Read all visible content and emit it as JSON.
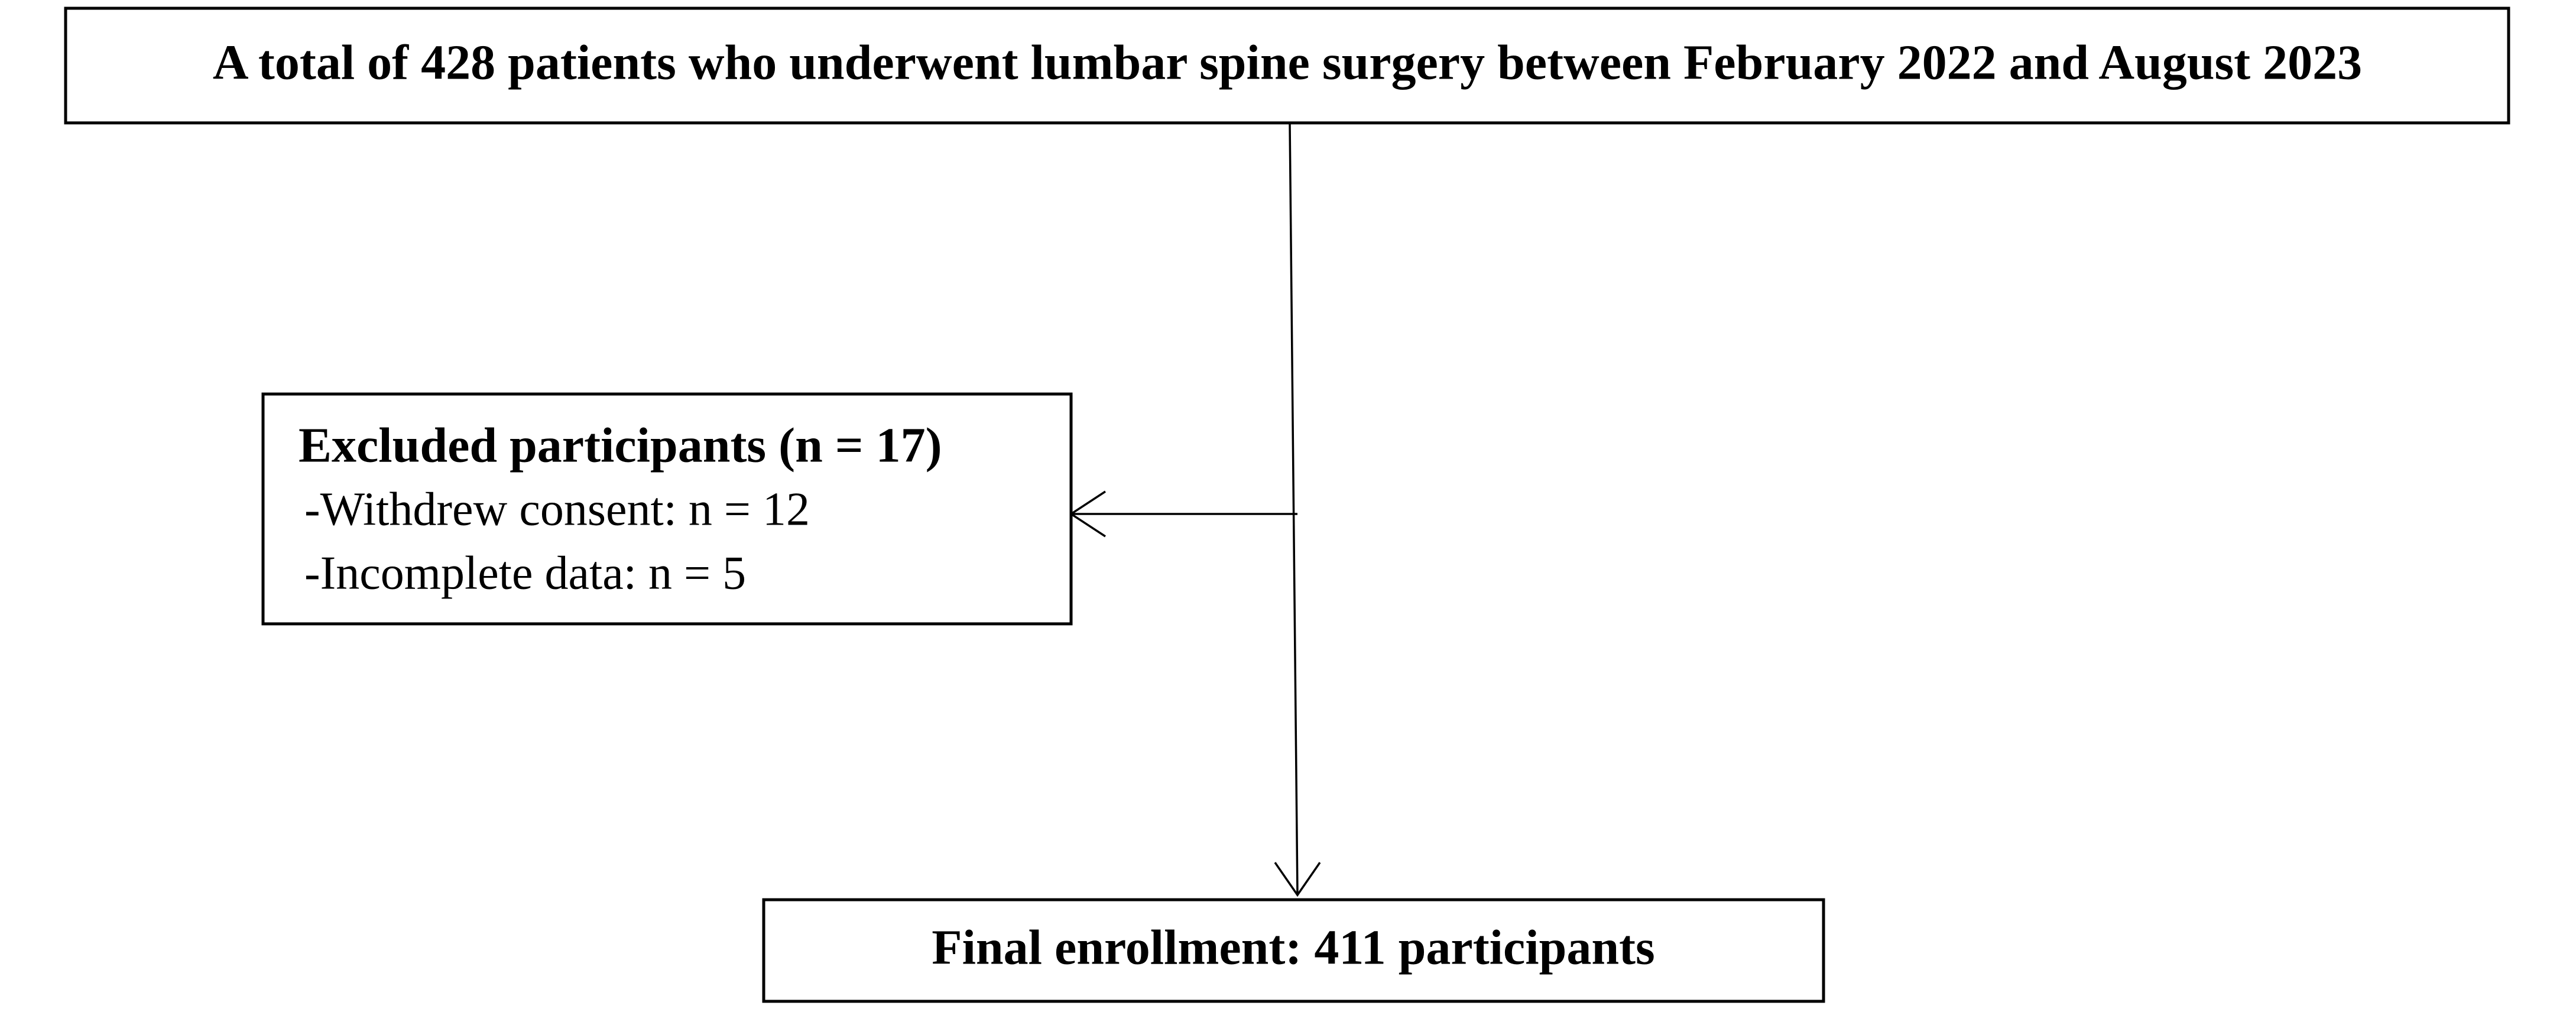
{
  "top_box": {
    "text": "A total of 428 patients who underwent lumbar spine surgery between February 2022 and August 2023"
  },
  "excluded_box": {
    "title": "Excluded participants (n = 17)",
    "items": [
      "-Withdrew consent: n = 12",
      "-Incomplete data: n = 5"
    ]
  },
  "final_box": {
    "text": "Final enrollment: 411 participants"
  }
}
